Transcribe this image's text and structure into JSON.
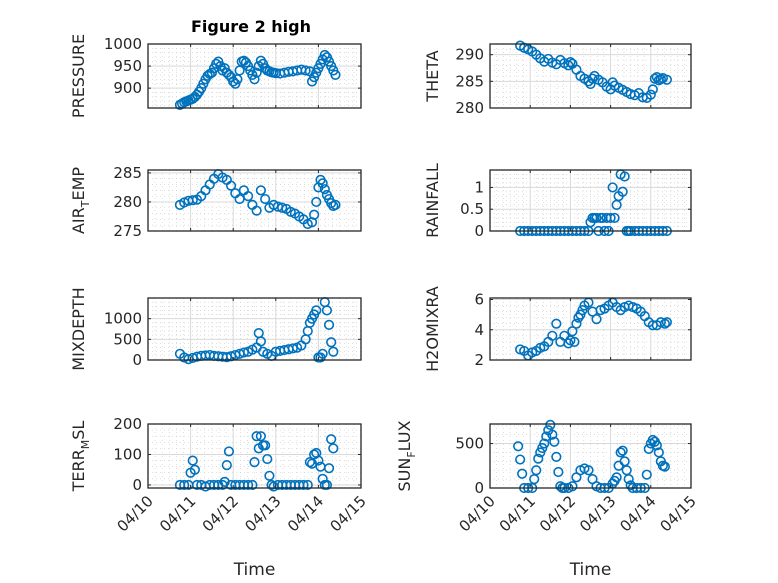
{
  "figure_title": "Figure 2 high",
  "marker_color": "#0072BD",
  "chart_data": [
    {
      "type": "scatter",
      "id": "pressure",
      "title": "Figure 2 high",
      "ylabel": "PRESSURE",
      "ylabel_sub": null,
      "xlabel": "",
      "xlim": [
        0,
        5
      ],
      "ylim": [
        855,
        1000
      ],
      "yticks": [
        900,
        950,
        1000
      ],
      "ytick_labels": [
        "900",
        "950",
        "1000"
      ],
      "x_tick_labels_visible": false,
      "grid": true,
      "minor_grid": true,
      "x": [
        0.75,
        0.8,
        0.85,
        0.9,
        0.95,
        1.0,
        1.05,
        1.1,
        1.15,
        1.2,
        1.25,
        1.3,
        1.35,
        1.4,
        1.45,
        1.5,
        1.55,
        1.6,
        1.65,
        1.7,
        1.75,
        1.8,
        1.85,
        1.9,
        1.95,
        2.0,
        2.05,
        2.1,
        2.15,
        2.2,
        2.25,
        2.3,
        2.35,
        2.4,
        2.45,
        2.5,
        2.55,
        2.6,
        2.65,
        2.7,
        2.75,
        2.8,
        2.85,
        2.9,
        2.95,
        3.0,
        3.1,
        3.2,
        3.3,
        3.4,
        3.5,
        3.6,
        3.7,
        3.8,
        3.85,
        3.9,
        3.95,
        4.0,
        4.05,
        4.1,
        4.15,
        4.2,
        4.25,
        4.3,
        4.35,
        4.4
      ],
      "y": [
        862,
        865,
        868,
        870,
        872,
        874,
        876,
        880,
        885,
        892,
        900,
        910,
        920,
        928,
        932,
        935,
        945,
        955,
        960,
        950,
        940,
        945,
        935,
        930,
        925,
        915,
        910,
        920,
        940,
        960,
        962,
        958,
        950,
        940,
        930,
        920,
        935,
        950,
        962,
        955,
        945,
        940,
        938,
        936,
        935,
        934,
        933,
        935,
        937,
        938,
        940,
        942,
        940,
        938,
        915,
        925,
        935,
        945,
        955,
        965,
        975,
        970,
        960,
        950,
        940,
        930
      ]
    },
    {
      "type": "scatter",
      "id": "theta",
      "ylabel": "THETA",
      "ylabel_sub": null,
      "xlabel": "",
      "xlim": [
        0,
        5
      ],
      "ylim": [
        280,
        292
      ],
      "yticks": [
        280,
        285,
        290
      ],
      "ytick_labels": [
        "280",
        "285",
        "290"
      ],
      "x_tick_labels_visible": false,
      "grid": true,
      "minor_grid": true,
      "x": [
        0.75,
        0.85,
        0.95,
        1.05,
        1.15,
        1.25,
        1.35,
        1.45,
        1.55,
        1.65,
        1.75,
        1.85,
        1.95,
        2.0,
        2.05,
        2.15,
        2.25,
        2.35,
        2.45,
        2.5,
        2.55,
        2.6,
        2.7,
        2.8,
        2.9,
        3.0,
        3.05,
        3.1,
        3.2,
        3.3,
        3.4,
        3.5,
        3.6,
        3.7,
        3.8,
        3.9,
        4.0,
        4.05,
        4.1,
        4.15,
        4.2,
        4.25,
        4.3,
        4.4
      ],
      "y": [
        291.7,
        291.3,
        291.0,
        290.6,
        290.0,
        289.3,
        288.7,
        289.2,
        288.5,
        288.2,
        289.0,
        288.4,
        288.0,
        288.6,
        288.3,
        287.2,
        286.0,
        285.5,
        285.0,
        284.5,
        285.5,
        286.0,
        285.3,
        284.8,
        284.0,
        283.5,
        284.8,
        284.2,
        283.8,
        283.4,
        283.0,
        282.6,
        282.4,
        282.8,
        282.0,
        281.9,
        282.5,
        283.5,
        285.5,
        285.8,
        285.2,
        285.4,
        285.6,
        285.3
      ]
    },
    {
      "type": "scatter",
      "id": "air_temp",
      "ylabel": "AIR",
      "ylabel_sub": "T",
      "ylabel_after": "EMP",
      "xlabel": "",
      "xlim": [
        0,
        5
      ],
      "ylim": [
        275,
        285.5
      ],
      "yticks": [
        275,
        280,
        285
      ],
      "ytick_labels": [
        "275",
        "280",
        "285"
      ],
      "x_tick_labels_visible": false,
      "grid": true,
      "minor_grid": true,
      "x": [
        0.75,
        0.85,
        0.95,
        1.05,
        1.15,
        1.25,
        1.35,
        1.45,
        1.55,
        1.65,
        1.75,
        1.85,
        1.95,
        2.05,
        2.15,
        2.25,
        2.35,
        2.45,
        2.55,
        2.65,
        2.75,
        2.85,
        2.95,
        3.05,
        3.15,
        3.25,
        3.35,
        3.45,
        3.55,
        3.65,
        3.75,
        3.85,
        3.9,
        3.95,
        4.0,
        4.05,
        4.1,
        4.15,
        4.2,
        4.25,
        4.3,
        4.35,
        4.4
      ],
      "y": [
        279.5,
        279.9,
        280.2,
        280.3,
        280.4,
        281.0,
        282.0,
        283.0,
        284.0,
        284.8,
        284.2,
        283.8,
        282.8,
        281.5,
        280.5,
        282.0,
        281.0,
        279.5,
        278.5,
        282.0,
        280.5,
        279.0,
        279.5,
        279.2,
        279.0,
        278.8,
        278.3,
        278.0,
        277.5,
        277.0,
        276.2,
        276.5,
        277.8,
        280.0,
        282.5,
        283.8,
        283.2,
        282.2,
        281.2,
        280.5,
        279.8,
        279.3,
        279.5
      ]
    },
    {
      "type": "scatter",
      "id": "rainfall",
      "ylabel": "RAINFALL",
      "ylabel_sub": null,
      "xlabel": "",
      "xlim": [
        0,
        5
      ],
      "ylim": [
        0,
        1.4
      ],
      "yticks": [
        0,
        0.5,
        1
      ],
      "ytick_labels": [
        "0",
        "0.5",
        "1"
      ],
      "x_tick_labels_visible": false,
      "grid": true,
      "minor_grid": true,
      "x": [
        0.75,
        0.85,
        0.95,
        1.05,
        1.15,
        1.25,
        1.35,
        1.45,
        1.55,
        1.65,
        1.75,
        1.85,
        1.95,
        2.05,
        2.15,
        2.25,
        2.35,
        2.45,
        2.5,
        2.55,
        2.6,
        2.65,
        2.7,
        2.75,
        2.8,
        2.85,
        2.9,
        2.95,
        3.0,
        3.05,
        3.1,
        3.15,
        3.2,
        3.25,
        3.3,
        3.35,
        3.4,
        3.45,
        3.5,
        3.6,
        3.7,
        3.8,
        3.9,
        4.0,
        4.1,
        4.2,
        4.3,
        4.4
      ],
      "y": [
        0,
        0,
        0,
        0,
        0,
        0,
        0,
        0,
        0,
        0,
        0,
        0,
        0,
        0,
        0,
        0,
        0,
        0,
        0.2,
        0.3,
        0.3,
        0.3,
        0,
        0.3,
        0.3,
        0,
        0.3,
        0,
        0.3,
        1.0,
        0.3,
        0.6,
        0.8,
        1.3,
        0.9,
        1.25,
        0,
        0,
        0,
        0,
        0,
        0,
        0,
        0,
        0,
        0,
        0,
        0
      ]
    },
    {
      "type": "scatter",
      "id": "mixdepth",
      "ylabel": "MIXDEPTH",
      "ylabel_sub": null,
      "xlabel": "",
      "xlim": [
        0,
        5
      ],
      "ylim": [
        0,
        1500
      ],
      "yticks": [
        0,
        500,
        1000
      ],
      "ytick_labels": [
        "0",
        "500",
        "1000"
      ],
      "x_tick_labels_visible": false,
      "grid": true,
      "minor_grid": true,
      "x": [
        0.75,
        0.85,
        0.95,
        1.05,
        1.15,
        1.25,
        1.35,
        1.45,
        1.55,
        1.65,
        1.75,
        1.85,
        1.95,
        2.05,
        2.15,
        2.25,
        2.35,
        2.45,
        2.55,
        2.6,
        2.65,
        2.7,
        2.8,
        2.9,
        3.0,
        3.1,
        3.2,
        3.3,
        3.4,
        3.5,
        3.6,
        3.7,
        3.75,
        3.8,
        3.85,
        3.9,
        3.95,
        4.0,
        4.05,
        4.1,
        4.15,
        4.2,
        4.25,
        4.3,
        4.35
      ],
      "y": [
        150,
        60,
        20,
        50,
        80,
        100,
        110,
        120,
        100,
        90,
        80,
        70,
        90,
        120,
        150,
        180,
        200,
        250,
        300,
        650,
        450,
        200,
        150,
        100,
        200,
        220,
        240,
        260,
        280,
        300,
        350,
        500,
        700,
        900,
        1000,
        1100,
        1200,
        60,
        60,
        150,
        1400,
        1200,
        850,
        430,
        200
      ]
    },
    {
      "type": "scatter",
      "id": "h2omixra",
      "ylabel": "H2OMIXRA",
      "ylabel_sub": null,
      "xlabel": "",
      "xlim": [
        0,
        5
      ],
      "ylim": [
        2,
        6.1
      ],
      "yticks": [
        2,
        4,
        6
      ],
      "ytick_labels": [
        "2",
        "4",
        "6"
      ],
      "x_tick_labels_visible": false,
      "grid": true,
      "minor_grid": true,
      "x": [
        0.75,
        0.85,
        0.95,
        1.05,
        1.15,
        1.25,
        1.35,
        1.45,
        1.55,
        1.65,
        1.75,
        1.85,
        1.95,
        2.0,
        2.05,
        2.1,
        2.15,
        2.2,
        2.25,
        2.3,
        2.35,
        2.45,
        2.55,
        2.65,
        2.75,
        2.85,
        2.95,
        3.05,
        3.15,
        3.25,
        3.35,
        3.45,
        3.55,
        3.65,
        3.75,
        3.85,
        3.95,
        4.05,
        4.15,
        4.25,
        4.35,
        4.4
      ],
      "y": [
        2.7,
        2.6,
        2.3,
        2.5,
        2.6,
        2.8,
        2.9,
        3.2,
        3.6,
        4.4,
        3.2,
        3.6,
        3.1,
        3.3,
        3.9,
        3.2,
        4.4,
        4.8,
        5.0,
        5.3,
        5.6,
        5.8,
        5.2,
        4.7,
        5.3,
        5.4,
        5.6,
        5.8,
        5.5,
        5.3,
        5.5,
        5.6,
        5.5,
        5.4,
        5.2,
        4.9,
        4.5,
        4.3,
        4.3,
        4.5,
        4.4,
        4.5
      ]
    },
    {
      "type": "scatter",
      "id": "terr_msl",
      "ylabel": "TERR",
      "ylabel_sub": "M",
      "ylabel_after": "SL",
      "xlabel": "Time",
      "xlim": [
        0,
        5
      ],
      "ylim": [
        -10,
        200
      ],
      "yticks": [
        0,
        100,
        200
      ],
      "ytick_labels": [
        "0",
        "100",
        "200"
      ],
      "xticks": [
        0,
        1,
        2,
        3,
        4,
        5
      ],
      "xtick_labels": [
        "04/10",
        "04/11",
        "04/12",
        "04/13",
        "04/14",
        "04/15"
      ],
      "x_tick_labels_visible": true,
      "grid": true,
      "minor_grid": true,
      "x": [
        0.75,
        0.85,
        0.95,
        1.0,
        1.05,
        1.1,
        1.15,
        1.25,
        1.35,
        1.45,
        1.55,
        1.65,
        1.75,
        1.8,
        1.85,
        1.9,
        1.95,
        2.05,
        2.15,
        2.25,
        2.35,
        2.45,
        2.5,
        2.55,
        2.6,
        2.65,
        2.7,
        2.75,
        2.8,
        2.85,
        2.9,
        2.95,
        3.05,
        3.15,
        3.25,
        3.35,
        3.45,
        3.55,
        3.65,
        3.75,
        3.8,
        3.85,
        3.9,
        3.95,
        4.0,
        4.05,
        4.1,
        4.15,
        4.2,
        4.25,
        4.3,
        4.35
      ],
      "y": [
        0,
        0,
        0,
        40,
        80,
        50,
        0,
        0,
        -5,
        0,
        0,
        0,
        0,
        10,
        65,
        110,
        0,
        0,
        0,
        0,
        0,
        0,
        75,
        160,
        120,
        160,
        130,
        130,
        85,
        30,
        0,
        -5,
        0,
        0,
        0,
        0,
        0,
        0,
        0,
        0,
        75,
        70,
        100,
        105,
        80,
        60,
        20,
        0,
        0,
        55,
        150,
        120
      ]
    },
    {
      "type": "scatter",
      "id": "sun_flux",
      "ylabel": "SUN",
      "ylabel_sub": "F",
      "ylabel_after": "LUX",
      "xlabel": "Time",
      "xlim": [
        0,
        5
      ],
      "ylim": [
        0,
        720
      ],
      "yticks": [
        0,
        500
      ],
      "ytick_labels": [
        "0",
        "500"
      ],
      "xticks": [
        0,
        1,
        2,
        3,
        4,
        5
      ],
      "xtick_labels": [
        "04/10",
        "04/11",
        "04/12",
        "04/13",
        "04/14",
        "04/15"
      ],
      "x_tick_labels_visible": true,
      "grid": true,
      "minor_grid": true,
      "x": [
        0.7,
        0.75,
        0.8,
        0.85,
        0.95,
        1.05,
        1.1,
        1.15,
        1.2,
        1.25,
        1.3,
        1.35,
        1.4,
        1.45,
        1.5,
        1.55,
        1.6,
        1.65,
        1.7,
        1.75,
        1.8,
        1.85,
        1.95,
        2.05,
        2.15,
        2.25,
        2.35,
        2.45,
        2.55,
        2.65,
        2.75,
        2.85,
        2.95,
        3.05,
        3.1,
        3.15,
        3.2,
        3.25,
        3.3,
        3.35,
        3.4,
        3.45,
        3.5,
        3.55,
        3.65,
        3.75,
        3.85,
        3.9,
        3.95,
        4.0,
        4.05,
        4.1,
        4.15,
        4.2,
        4.25,
        4.3,
        4.35
      ],
      "y": [
        470,
        320,
        160,
        0,
        0,
        0,
        100,
        200,
        330,
        400,
        450,
        500,
        580,
        650,
        710,
        600,
        520,
        350,
        180,
        20,
        0,
        0,
        0,
        20,
        120,
        200,
        220,
        200,
        100,
        20,
        0,
        0,
        0,
        50,
        80,
        120,
        250,
        400,
        420,
        300,
        200,
        100,
        30,
        0,
        0,
        0,
        0,
        150,
        440,
        500,
        540,
        520,
        480,
        400,
        300,
        250,
        240
      ]
    }
  ]
}
